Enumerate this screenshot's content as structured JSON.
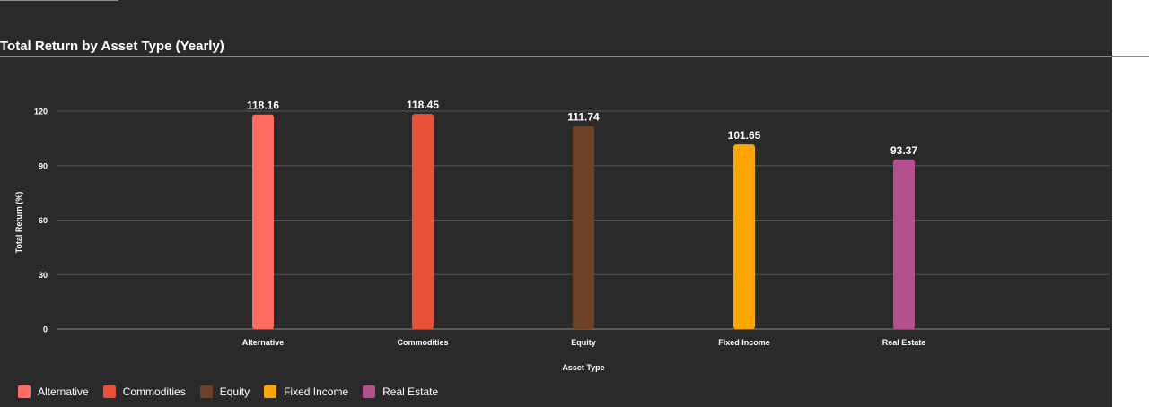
{
  "header": {
    "title": "Total Return by Asset Type (Yearly)"
  },
  "chart_data": {
    "type": "bar",
    "title": "Total Return by Asset Type (Yearly)",
    "xlabel": "Asset Type",
    "ylabel": "Total Return (%)",
    "categories": [
      "Alternative",
      "Commodities",
      "Equity",
      "Fixed Income",
      "Real Estate"
    ],
    "values": [
      118.16,
      118.45,
      111.74,
      101.65,
      93.37
    ],
    "data_labels": [
      "118.16",
      "118.45",
      "111.74",
      "101.65",
      "93.37"
    ],
    "colors": [
      "#ff6b5e",
      "#e8503a",
      "#6e4224",
      "#ffa500",
      "#b5508f"
    ],
    "ylim": [
      0,
      120
    ],
    "yticks": [
      0,
      30,
      60,
      90,
      120
    ],
    "grid": true,
    "legend_position": "bottom-left"
  },
  "legend": {
    "items": [
      {
        "label": "Alternative",
        "color": "#ff6b5e"
      },
      {
        "label": "Commodities",
        "color": "#e8503a"
      },
      {
        "label": "Equity",
        "color": "#6e4224"
      },
      {
        "label": "Fixed Income",
        "color": "#ffa500"
      },
      {
        "label": "Real Estate",
        "color": "#b5508f"
      }
    ]
  }
}
